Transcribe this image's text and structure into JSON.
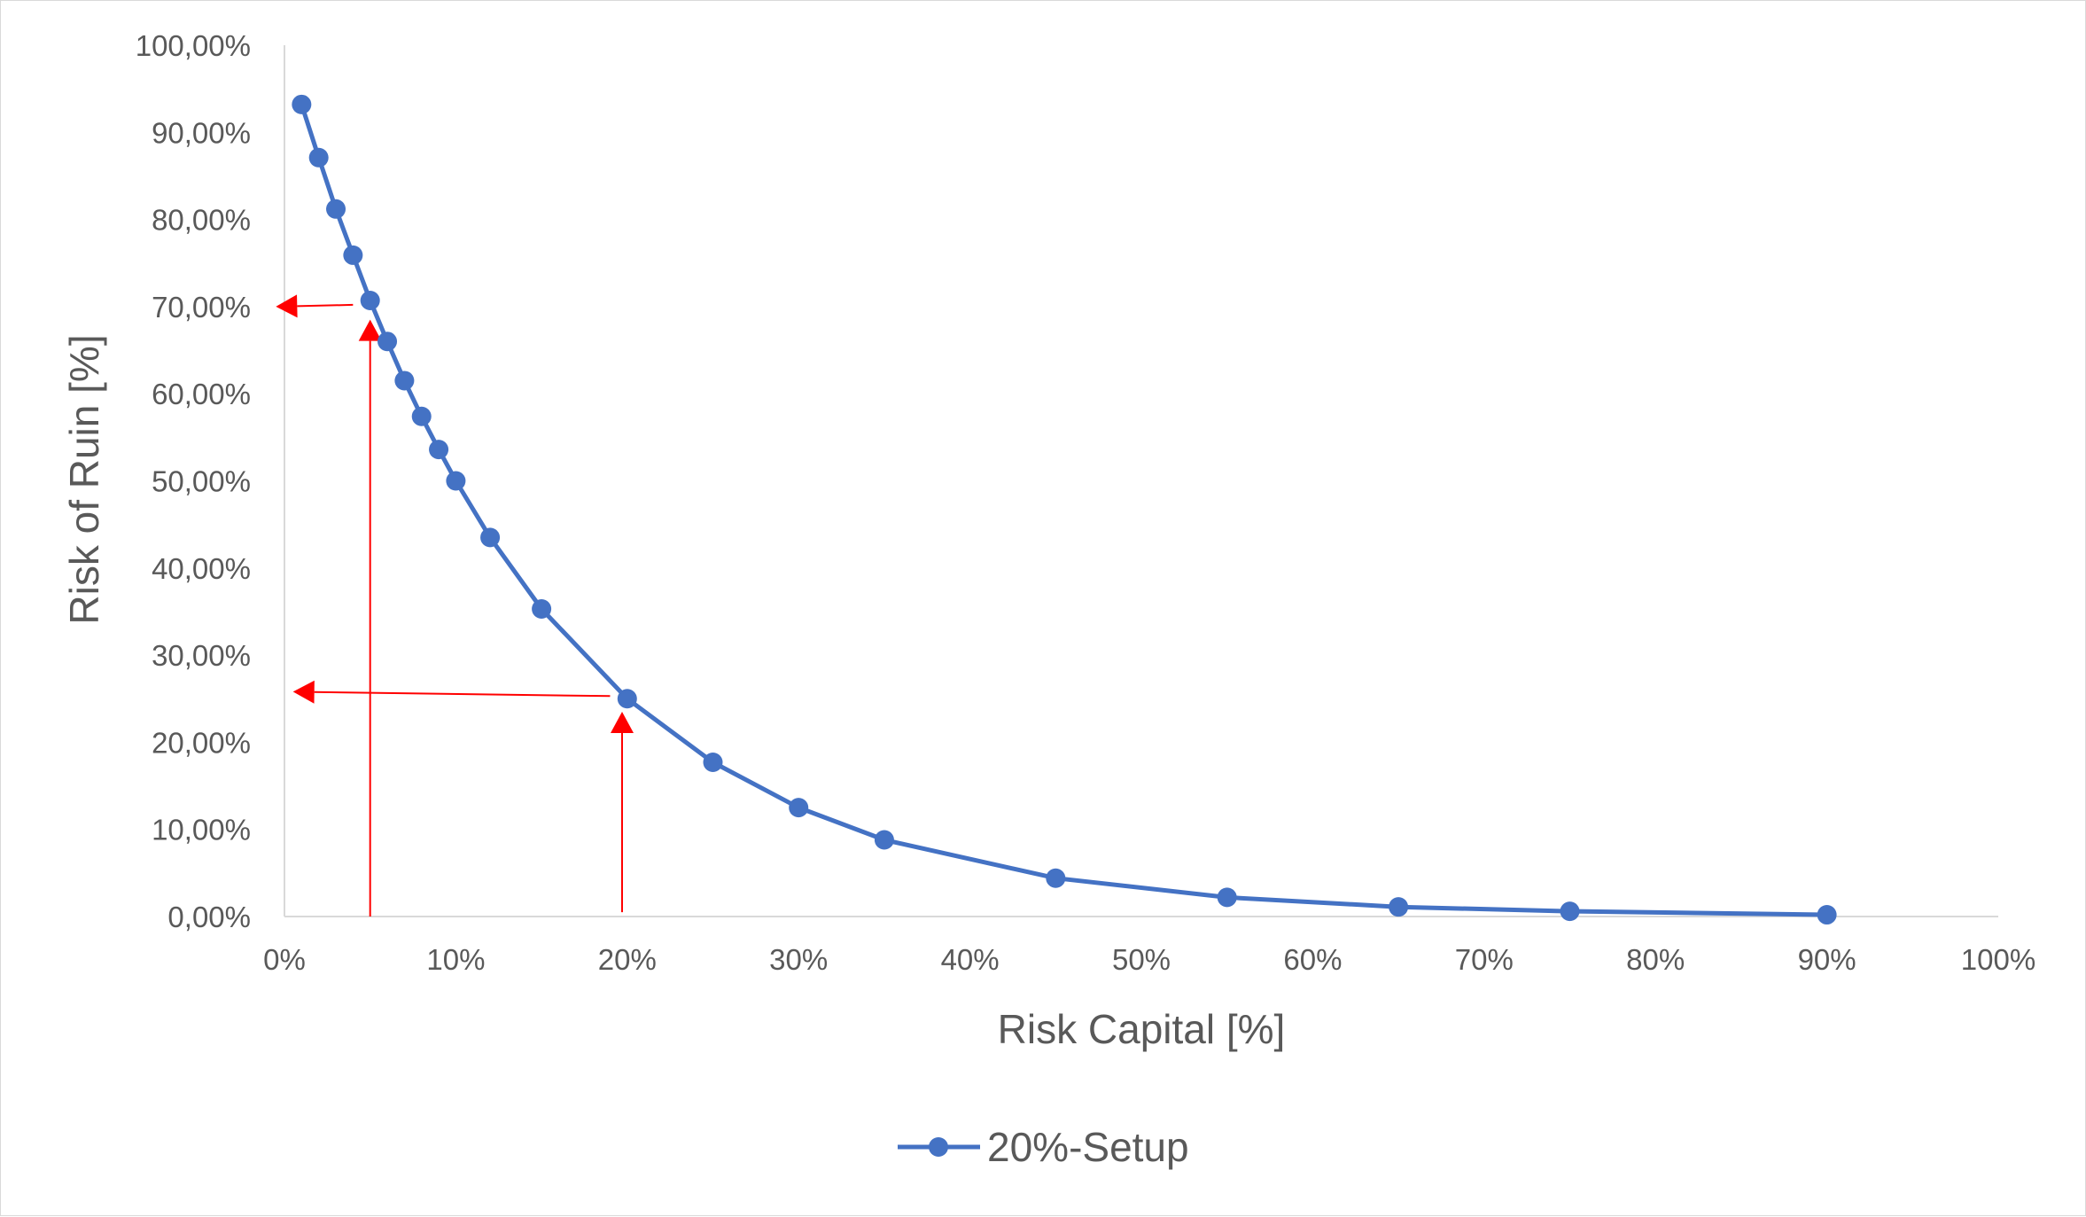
{
  "chart_data": {
    "type": "line",
    "xlabel": "Risk Capital [%]",
    "ylabel": "Risk of Ruin [%]",
    "xlim": [
      0,
      100
    ],
    "ylim": [
      0,
      100
    ],
    "x_ticks": [
      "0%",
      "10%",
      "20%",
      "30%",
      "40%",
      "50%",
      "60%",
      "70%",
      "80%",
      "90%",
      "100%"
    ],
    "y_ticks": [
      "0,00%",
      "10,00%",
      "20,00%",
      "30,00%",
      "40,00%",
      "50,00%",
      "60,00%",
      "70,00%",
      "80,00%",
      "90,00%",
      "100,00%"
    ],
    "grid": false,
    "legend_position": "bottom",
    "colors": {
      "series": "#4472c4",
      "annotation": "#ff0000",
      "axis": "#d9d9d9",
      "text": "#595959"
    },
    "series": [
      {
        "name": "20%-Setup",
        "x": [
          1,
          2,
          3,
          4,
          5,
          6,
          7,
          8,
          9,
          10,
          12,
          15,
          20,
          25,
          30,
          35,
          45,
          55,
          65,
          75,
          90
        ],
        "y": [
          93.2,
          87.1,
          81.2,
          75.9,
          70.7,
          66.0,
          61.5,
          57.4,
          53.6,
          50.0,
          43.5,
          35.3,
          25.0,
          17.7,
          12.5,
          8.8,
          4.4,
          2.2,
          1.1,
          0.6,
          0.2
        ]
      }
    ],
    "annotations": [
      {
        "type": "arrow",
        "from": [
          5,
          0
        ],
        "to": [
          5,
          68.5
        ]
      },
      {
        "type": "arrow",
        "from": [
          4,
          70.2
        ],
        "to": [
          -0.5,
          70.0
        ]
      },
      {
        "type": "arrow",
        "from": [
          19.7,
          0.5
        ],
        "to": [
          19.7,
          23.5
        ]
      },
      {
        "type": "arrow",
        "from": [
          19,
          25.3
        ],
        "to": [
          0.5,
          25.8
        ]
      }
    ]
  }
}
